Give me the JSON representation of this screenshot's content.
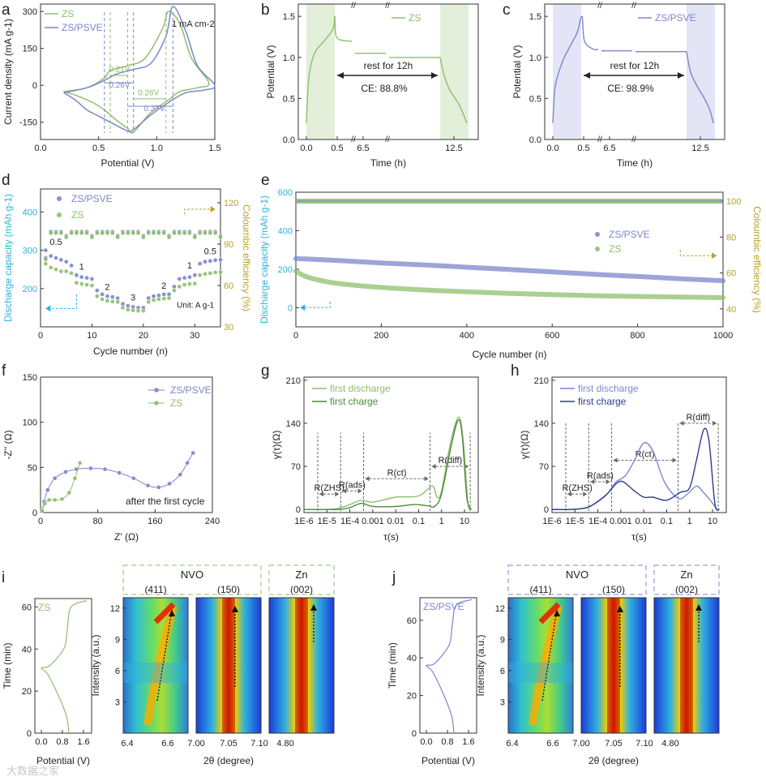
{
  "colors": {
    "zs": "#8dbf6e",
    "zsPsve": "#7d86cc",
    "zsDark": "#4f8a3c",
    "navy": "#2e3b8f",
    "cyan": "#2bb3d9",
    "olive": "#b5a32a",
    "shadeGreen": "#e3efd9",
    "shadeBlue": "#e3e4f6"
  },
  "chart_data": [
    {
      "panel": "a",
      "type": "line",
      "xlabel": "Potential (V)",
      "ylabel": "Current density (mA g-1)",
      "xlim": [
        0,
        1.5
      ],
      "ylim": [
        -220,
        330
      ],
      "xticks": [
        "0.0",
        "0.5",
        "1.0",
        "1.5"
      ],
      "yticks": [
        "-150",
        "0",
        "150",
        "300"
      ],
      "note": "1 mA cm-2",
      "gap_labels": [
        "0.21V",
        "0.26V",
        "0.26V",
        "0.37V"
      ],
      "legend": [
        "ZS",
        "ZS/PSVE"
      ],
      "series": [
        {
          "name": "ZS",
          "x": [
            0.2,
            0.4,
            0.55,
            0.6,
            0.75,
            0.9,
            1.05,
            1.1,
            1.2,
            1.3,
            1.45,
            1.35,
            1.2,
            1.1,
            0.95,
            0.8,
            0.75,
            0.65,
            0.55,
            0.45,
            0.3,
            0.2
          ],
          "y": [
            -25,
            -10,
            30,
            60,
            80,
            110,
            230,
            300,
            250,
            110,
            10,
            -10,
            -25,
            -60,
            -110,
            -190,
            -175,
            -140,
            -100,
            -70,
            -40,
            -25
          ]
        },
        {
          "name": "ZS/PSVE",
          "x": [
            0.2,
            0.4,
            0.55,
            0.65,
            0.8,
            0.95,
            1.08,
            1.14,
            1.25,
            1.35,
            1.5,
            1.4,
            1.25,
            1.1,
            0.95,
            0.8,
            0.75,
            0.6,
            0.5,
            0.4,
            0.3,
            0.2
          ],
          "y": [
            -30,
            -10,
            20,
            45,
            65,
            90,
            200,
            320,
            220,
            80,
            0,
            -20,
            -30,
            -70,
            -120,
            -180,
            -185,
            -150,
            -125,
            -100,
            -60,
            -30
          ]
        }
      ]
    },
    {
      "panel": "b",
      "type": "line",
      "xlabel": "Time (h)",
      "ylabel": "Potential (V)",
      "xticks": [
        "0.0",
        "0.5",
        "6.5",
        "12.5"
      ],
      "yticks": [
        "0.0",
        "0.5",
        "1.0",
        "1.5"
      ],
      "ylim": [
        0,
        1.65
      ],
      "legend": [
        "ZS"
      ],
      "rest_label": "rest for 12h",
      "ce": "CE: 88.8%"
    },
    {
      "panel": "c",
      "type": "line",
      "xlabel": "Time (h)",
      "ylabel": "Potential (V)",
      "xticks": [
        "0.0",
        "0.5",
        "6.5",
        "12.5"
      ],
      "yticks": [
        "0.0",
        "0.5",
        "1.0",
        "1.5"
      ],
      "ylim": [
        0,
        1.65
      ],
      "legend": [
        "ZS/PSVE"
      ],
      "rest_label": "rest for 12h",
      "ce": "CE: 98.9%"
    },
    {
      "panel": "d",
      "type": "scatter",
      "xlabel": "Cycle number (n)",
      "ylabel": "Discharge capacity (mAh g-1)",
      "y2label": "Coloumbic efficiency (%)",
      "xlim": [
        0,
        35
      ],
      "ylim": [
        100,
        460
      ],
      "y2lim": [
        30,
        130
      ],
      "xticks": [
        "0",
        "10",
        "20",
        "30"
      ],
      "yticks": [
        "200",
        "300",
        "400"
      ],
      "y2ticks": [
        "30",
        "60",
        "90",
        "120"
      ],
      "rate_labels": [
        "0.5",
        "1",
        "2",
        "3",
        "2",
        "1",
        "0.5"
      ],
      "unit_label": "Unit: A g-1",
      "legend": [
        "ZS/PSVE",
        "ZS"
      ],
      "series": [
        {
          "name": "ZS/PSVE capacity",
          "x": [
            1,
            2,
            3,
            4,
            5,
            6,
            7,
            8,
            9,
            10,
            11,
            12,
            13,
            14,
            15,
            16,
            17,
            18,
            19,
            20,
            21,
            22,
            23,
            24,
            25,
            26,
            27,
            28,
            29,
            30,
            31,
            32,
            33,
            34,
            35
          ],
          "y": [
            300,
            285,
            280,
            275,
            270,
            260,
            235,
            230,
            228,
            225,
            195,
            185,
            180,
            178,
            175,
            160,
            155,
            152,
            150,
            150,
            175,
            180,
            182,
            185,
            185,
            205,
            225,
            228,
            230,
            235,
            265,
            270,
            272,
            274,
            275
          ]
        },
        {
          "name": "ZS capacity",
          "x": [
            1,
            2,
            3,
            4,
            5,
            6,
            7,
            8,
            9,
            10,
            11,
            12,
            13,
            14,
            15,
            16,
            17,
            18,
            19,
            20,
            21,
            22,
            23,
            24,
            25,
            26,
            27,
            28,
            29,
            30,
            31,
            32,
            33,
            34,
            35
          ],
          "y": [
            265,
            255,
            250,
            245,
            245,
            240,
            215,
            212,
            210,
            208,
            180,
            172,
            168,
            166,
            165,
            150,
            145,
            143,
            142,
            142,
            165,
            170,
            172,
            174,
            175,
            195,
            205,
            210,
            212,
            213,
            235,
            238,
            240,
            242,
            243
          ]
        }
      ]
    },
    {
      "panel": "e",
      "type": "scatter",
      "xlabel": "Cycle number (n)",
      "ylabel": "Discharge capacity (mAh g-1)",
      "y2label": "Coloumbic efficiency (%)",
      "xlim": [
        0,
        1000
      ],
      "ylim": [
        -100,
        600
      ],
      "y2lim": [
        30,
        105
      ],
      "xticks": [
        "0",
        "200",
        "400",
        "600",
        "800",
        "1000"
      ],
      "yticks": [
        "0",
        "200",
        "400",
        "600"
      ],
      "y2ticks": [
        "40",
        "60",
        "80",
        "100"
      ],
      "legend": [
        "ZS/PSVE",
        "ZS"
      ],
      "series": [
        {
          "name": "ZS/PSVE",
          "x": [
            0,
            100,
            200,
            300,
            400,
            500,
            600,
            700,
            800,
            900,
            1000
          ],
          "y": [
            255,
            245,
            232,
            222,
            210,
            198,
            186,
            173,
            162,
            150,
            140
          ]
        },
        {
          "name": "ZS",
          "x": [
            0,
            20,
            50,
            100,
            200,
            300,
            400,
            500,
            600,
            700,
            800,
            900,
            1000
          ],
          "y": [
            190,
            165,
            145,
            125,
            105,
            92,
            82,
            74,
            68,
            62,
            58,
            55,
            52
          ]
        }
      ]
    },
    {
      "panel": "f",
      "type": "scatter",
      "xlabel": "Z' (Ω)",
      "ylabel": "-Z'' (Ω)",
      "xlim": [
        0,
        240
      ],
      "ylim": [
        0,
        150
      ],
      "xticks": [
        "0",
        "80",
        "160",
        "240"
      ],
      "yticks": [
        "0",
        "50",
        "100",
        "150"
      ],
      "note": "after the first cycle",
      "legend": [
        "ZS/PSVE",
        "ZS"
      ],
      "series": [
        {
          "name": "ZS/PSVE",
          "x": [
            2,
            5,
            10,
            20,
            35,
            50,
            70,
            90,
            110,
            130,
            150,
            165,
            180,
            195,
            205,
            213
          ],
          "y": [
            2,
            12,
            25,
            38,
            45,
            48,
            49,
            48,
            44,
            38,
            30,
            28,
            32,
            42,
            55,
            66
          ]
        },
        {
          "name": "ZS",
          "x": [
            2,
            6,
            12,
            20,
            30,
            40,
            48,
            55
          ],
          "y": [
            2,
            10,
            14,
            14,
            15,
            22,
            38,
            55
          ]
        }
      ]
    },
    {
      "panel": "g",
      "type": "line",
      "xlabel": "τ(s)",
      "ylabel": "γ(τ)(Ω)",
      "ylim": [
        -5,
        215
      ],
      "xticks": [
        "1E-6",
        "1E-5",
        "1E-4",
        "0.001",
        "0.01",
        "0.1",
        "1",
        "10"
      ],
      "yticks": [
        "0",
        "70",
        "140",
        "210"
      ],
      "legend": [
        "first discharge",
        "first charge"
      ],
      "region_labels": [
        "R(ZHS)",
        "R(ads)",
        "R(ct)",
        "R(diff)"
      ]
    },
    {
      "panel": "h",
      "type": "line",
      "xlabel": "τ(s)",
      "ylabel": "γ(τ)(Ω)",
      "ylim": [
        -5,
        215
      ],
      "xticks": [
        "1E-6",
        "1E-5",
        "1E-4",
        "0.001",
        "0.01",
        "0.1",
        "1",
        "10"
      ],
      "yticks": [
        "0",
        "70",
        "140",
        "210"
      ],
      "legend": [
        "first discharge",
        "first charge"
      ],
      "region_labels": [
        "R(ZHS)",
        "R(ads)",
        "R(ct)",
        "R(diff)"
      ]
    },
    {
      "panel": "i",
      "type": "heatmap",
      "legend": [
        "ZS"
      ],
      "ylabel_left": "Time (min)",
      "xlabel_left": "Potential (V)",
      "ylabel_map": "Intensity (a.u.)",
      "xlabel_map": "2θ (degree)",
      "left_xticks": [
        "0.0",
        "0.8",
        "1.6"
      ],
      "left_yticks": [
        "0",
        "20",
        "40",
        "60"
      ],
      "map_yticks": [
        "3",
        "6",
        "9",
        "12"
      ],
      "map_xticks": [
        "6.4",
        "6.6",
        "7.00",
        "7.05",
        "7.10",
        "4.80"
      ],
      "group_labels": [
        "NVO",
        "Zn"
      ],
      "peak_labels": [
        "(411)",
        "(150)",
        "(002)"
      ]
    },
    {
      "panel": "j",
      "type": "heatmap",
      "legend": [
        "ZS/PSVE"
      ],
      "ylabel_left": "Time (min)",
      "xlabel_left": "Potential (V)",
      "ylabel_map": "Intensity (a.u.)",
      "xlabel_map": "2θ (degree)",
      "left_xticks": [
        "0.0",
        "0.8",
        "1.6"
      ],
      "left_yticks": [
        "0",
        "20",
        "40",
        "60"
      ],
      "map_yticks": [
        "3",
        "6",
        "9",
        "12"
      ],
      "map_xticks": [
        "6.4",
        "6.6",
        "7.00",
        "7.05",
        "7.10",
        "4.80"
      ],
      "group_labels": [
        "NVO",
        "Zn"
      ],
      "peak_labels": [
        "(411)",
        "(150)",
        "(002)"
      ]
    }
  ],
  "panel_letters": [
    "a",
    "b",
    "c",
    "d",
    "e",
    "f",
    "g",
    "h",
    "i",
    "j"
  ],
  "watermark": "大数据之家"
}
